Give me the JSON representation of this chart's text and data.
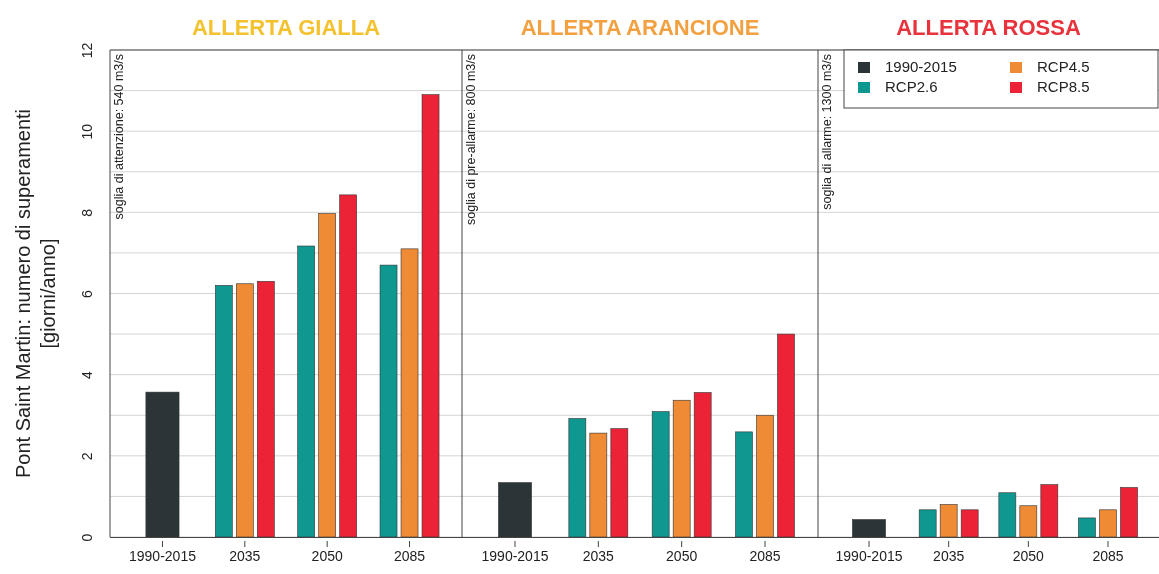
{
  "chart_data": [
    {
      "type": "bar",
      "title": "ALLERTA GIALLA",
      "ylabel": "Pont Saint Martin: numero di superamenti\n[giorni/anno]",
      "categories": [
        "1990-2015",
        "2035",
        "2050",
        "2085"
      ],
      "ylim": [
        0,
        12
      ],
      "yticks": [
        0,
        {
          "value": 1,
          "label": null
        },
        2,
        {
          "value": 3,
          "label": null
        },
        4,
        {
          "value": 5,
          "label": null
        },
        6,
        {
          "value": 7,
          "label": null
        },
        8,
        {
          "value": 9,
          "label": null
        },
        10,
        {
          "value": 11,
          "label": null
        },
        12
      ],
      "grid": "y",
      "annotations": [
        "soglia di attenzione: 540 m3/s"
      ],
      "series": [
        {
          "color": "#2b3538",
          "values": [
            3.57,
            null,
            null,
            null
          ]
        },
        {
          "color": "#0e9890",
          "values": [
            null,
            6.2,
            7.17,
            6.7
          ]
        },
        {
          "color": "#ef8a35",
          "values": [
            null,
            6.24,
            7.97,
            7.1
          ]
        },
        {
          "color": "#ec2236",
          "values": [
            null,
            6.3,
            8.43,
            10.9
          ]
        }
      ]
    },
    {
      "type": "bar",
      "title": "ALLERTA ARANCIONE",
      "categories": [
        "1990-2015",
        "2035",
        "2050",
        "2085"
      ],
      "ylim": [
        0,
        12
      ],
      "yticks": [
        0,
        {
          "value": 1,
          "label": null
        },
        2,
        {
          "value": 3,
          "label": null
        },
        4,
        {
          "value": 5,
          "label": null
        },
        6,
        {
          "value": 7,
          "label": null
        },
        8,
        {
          "value": 9,
          "label": null
        },
        10,
        {
          "value": 11,
          "label": null
        },
        12
      ],
      "grid": "y",
      "tick_labels": "x",
      "annotations": [
        "soglia di pre-allarme: 800 m3/s"
      ],
      "series": [
        {
          "color": "#2b3538",
          "values": [
            1.34,
            null,
            null,
            null
          ]
        },
        {
          "color": "#0e9890",
          "values": [
            null,
            2.92,
            3.09,
            2.59
          ]
        },
        {
          "color": "#ef8a35",
          "values": [
            null,
            2.56,
            3.37,
            3.0
          ]
        },
        {
          "color": "#ec2236",
          "values": [
            null,
            2.67,
            3.56,
            5.0
          ]
        }
      ]
    },
    {
      "type": "bar",
      "title": "ALLERTA ROSSA",
      "categories": [
        "1990-2015",
        "2035",
        "2050",
        "2085"
      ],
      "ylim": [
        0,
        12
      ],
      "yticks": [
        0,
        {
          "value": 1,
          "label": null
        },
        2,
        {
          "value": 3,
          "label": null
        },
        4,
        {
          "value": 5,
          "label": null
        },
        6,
        {
          "value": 7,
          "label": null
        },
        8,
        {
          "value": 9,
          "label": null
        },
        10,
        {
          "value": 11,
          "label": null
        },
        12
      ],
      "grid": "y",
      "tick_labels": "x",
      "legend": "top right",
      "annotations": [
        "soglia di allarme: 1300 m3/s"
      ],
      "series": [
        {
          "name": "1990-2015",
          "color": "#2b3538",
          "values": [
            0.43,
            null,
            null,
            null
          ]
        },
        {
          "name": "RCP2.6",
          "color": "#0e9890",
          "values": [
            null,
            0.67,
            1.09,
            0.47
          ]
        },
        {
          "name": "RCP4.5",
          "color": "#ef8a35",
          "values": [
            null,
            0.8,
            0.77,
            0.67
          ]
        },
        {
          "name": "RCP8.5",
          "color": "#ec2236",
          "values": [
            null,
            0.67,
            1.29,
            1.22
          ]
        }
      ]
    }
  ]
}
